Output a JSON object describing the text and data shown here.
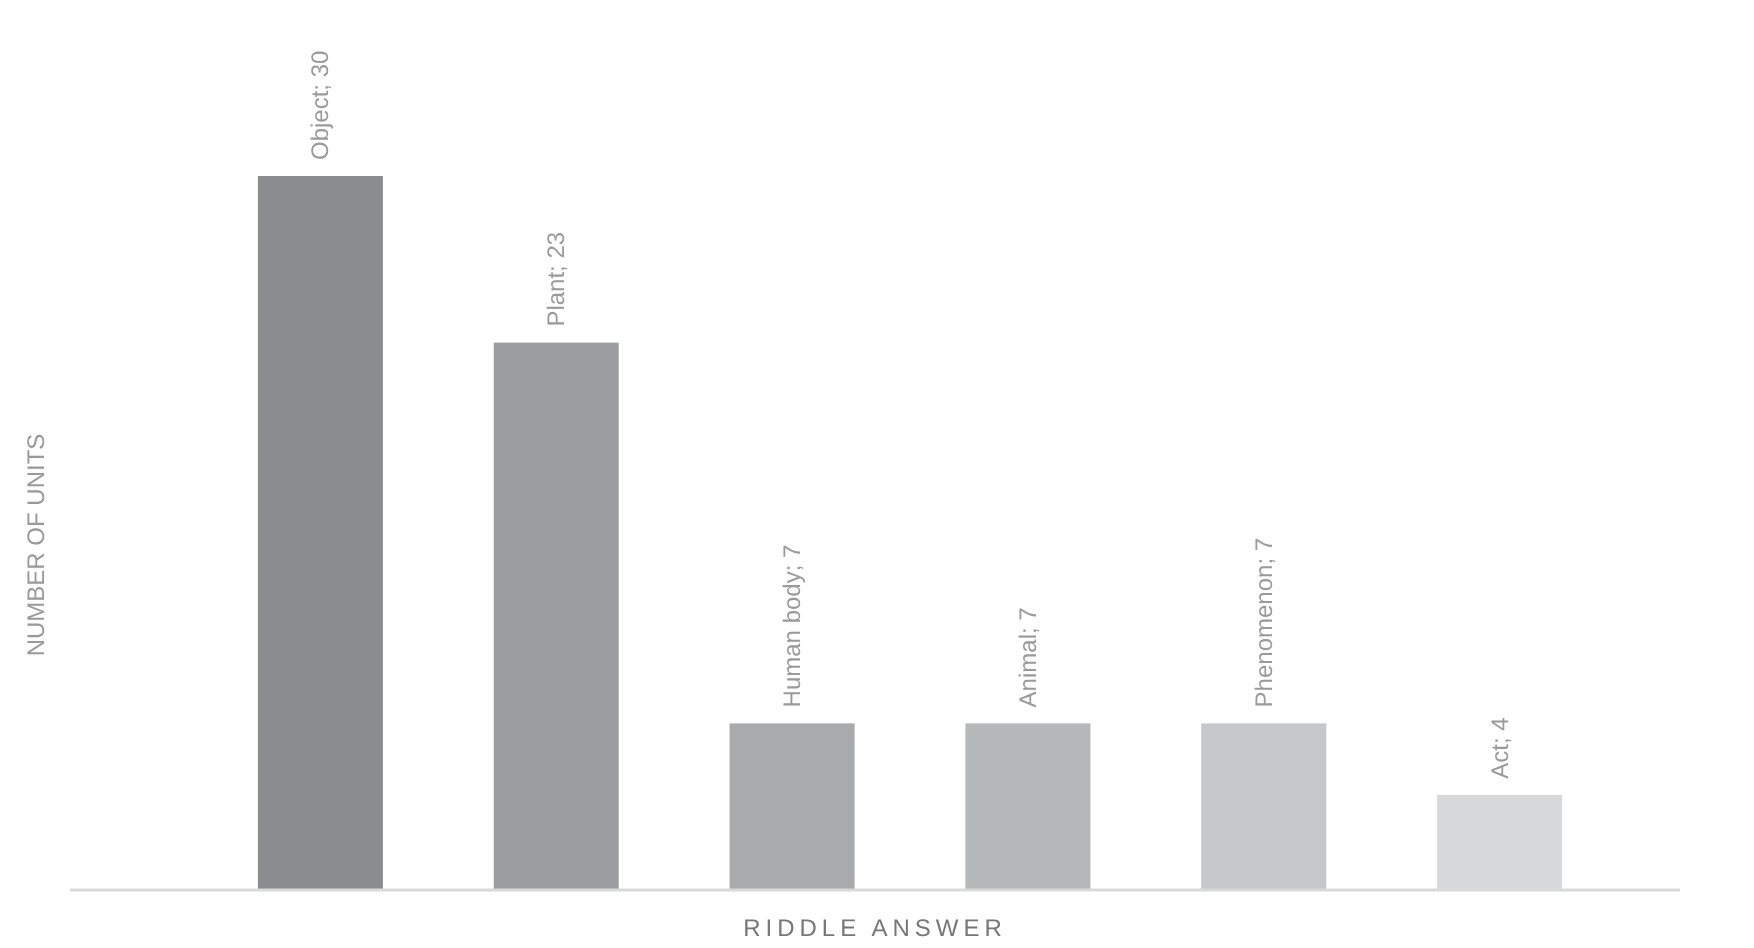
{
  "chart_data": {
    "type": "bar",
    "xlabel": "RIDDLE ANSWER",
    "ylabel": "NUMBER OF UNITS",
    "categories": [
      null,
      null,
      null,
      null,
      null,
      null
    ],
    "values": [
      30,
      23,
      7,
      7,
      7,
      4
    ],
    "value_labels": [
      "Object; 30",
      "Plant; 23",
      "Human body; 7",
      "Animal; 7",
      "Phenomenon; 7",
      "Act; 4"
    ],
    "colors": [
      "#8b8d90",
      "#9b9da0",
      "#a8aaac",
      "#b5b7b9",
      "#c6c7c9",
      "#d7d8d9"
    ]
  }
}
